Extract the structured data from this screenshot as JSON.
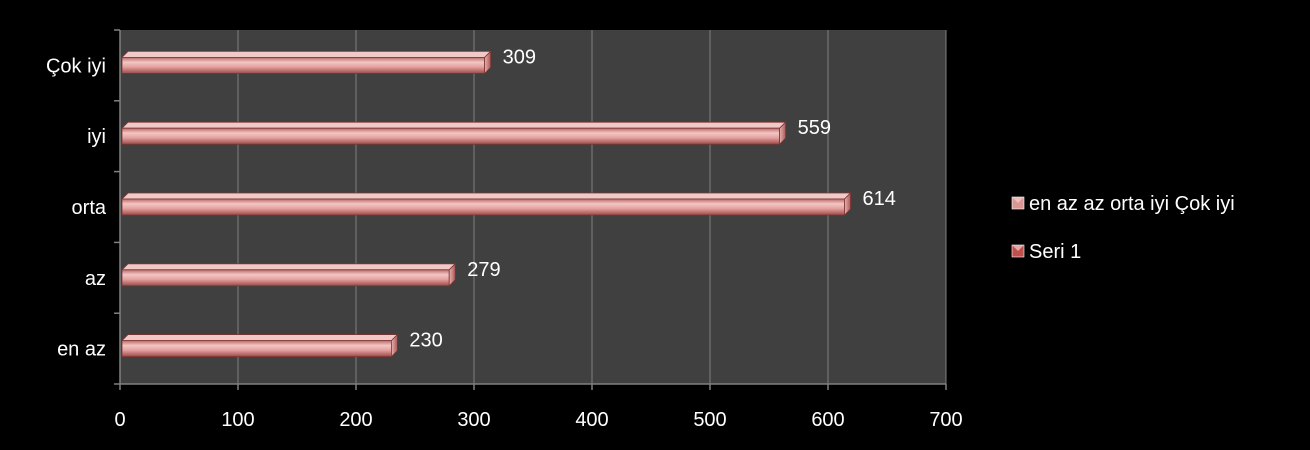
{
  "chart_data": {
    "type": "bar",
    "orientation": "horizontal",
    "categories": [
      "en az",
      "az",
      "orta",
      "iyi",
      "Çok iyi"
    ],
    "series": [
      {
        "name": "en az az orta iyi Çok iyi",
        "values": [
          230,
          279,
          614,
          559,
          309
        ]
      }
    ],
    "data_labels": [
      "230",
      "279",
      "614",
      "559",
      "309"
    ],
    "xlim": [
      0,
      700
    ],
    "x_ticks": [
      0,
      100,
      200,
      300,
      400,
      500,
      600,
      700
    ],
    "x_tick_labels": [
      "0",
      "100",
      "200",
      "300",
      "400",
      "500",
      "600",
      "700"
    ],
    "grid": "vertical",
    "legend": {
      "placement": "right",
      "entries": [
        {
          "label": "en az az orta iyi Çok iyi",
          "color": "#d99694"
        },
        {
          "label": "Seri 1",
          "color": "#c0504d"
        }
      ]
    },
    "colors": {
      "background": "#000000",
      "plot_area": "#404040",
      "bar_fill": "#e6a7a5",
      "bar_edge": "#7f3533",
      "grid": "#7f7f7f",
      "axis": "#808080",
      "text": "#ffffff"
    }
  }
}
